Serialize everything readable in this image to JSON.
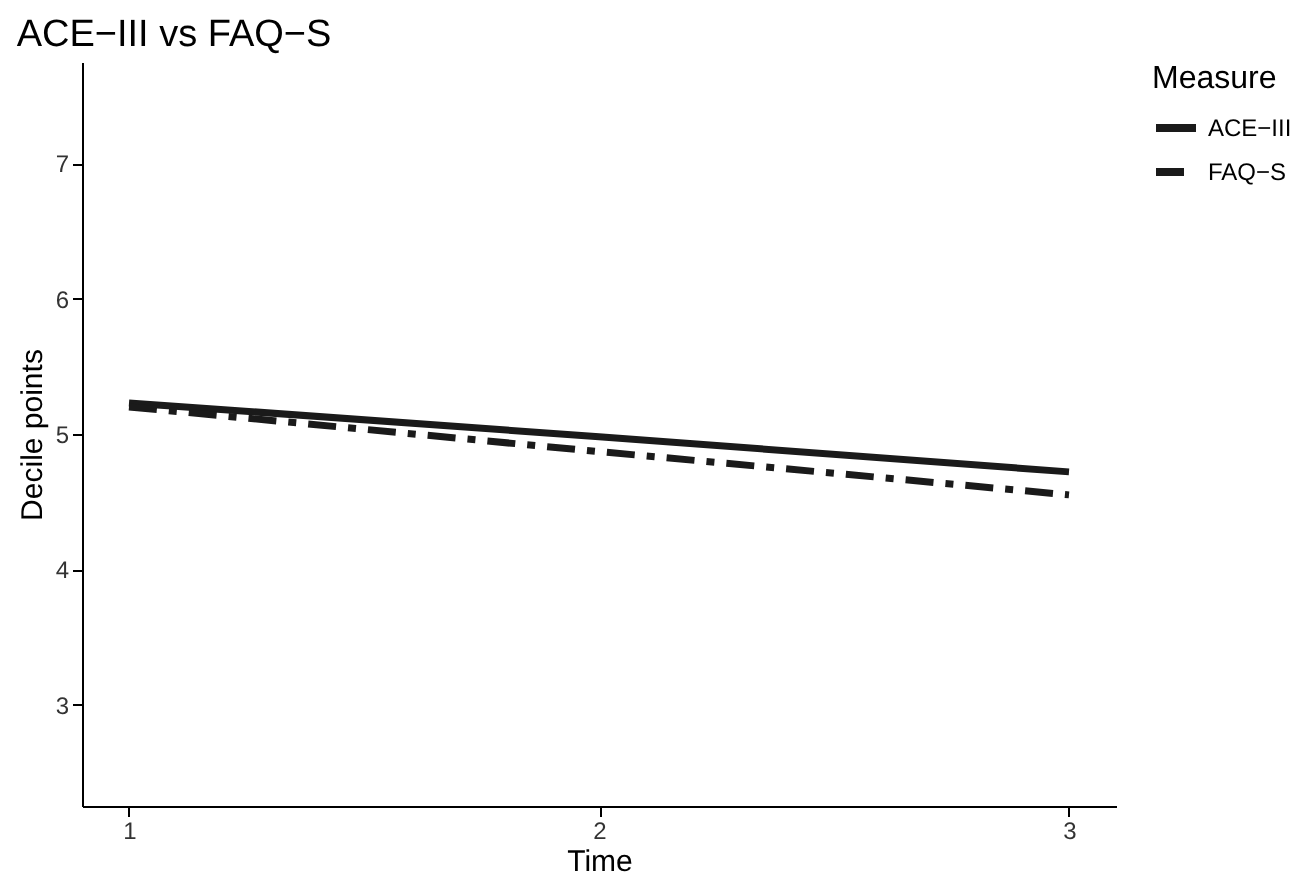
{
  "chart_data": {
    "type": "line",
    "title": "ACE−III vs FAQ−S",
    "xlabel": "Time",
    "ylabel": "Decile points",
    "legend_title": "Measure",
    "x": [
      1,
      2,
      3
    ],
    "series": [
      {
        "name": "ACE−III",
        "color": "#1a1a1a",
        "line_style": "solid",
        "values": [
          5.23,
          4.98,
          4.72
        ]
      },
      {
        "name": "FAQ−S",
        "color": "#1a1a1a",
        "line_style": "dashed",
        "values": [
          5.2,
          4.87,
          4.55
        ]
      }
    ],
    "xlim": [
      0.9,
      3.1
    ],
    "xticks": [
      1,
      2,
      3
    ],
    "ylim": [
      2.25,
      7.75
    ],
    "yticks": [
      3,
      4,
      5,
      6,
      7
    ],
    "grid": false,
    "legend": "right",
    "marker": "none"
  }
}
